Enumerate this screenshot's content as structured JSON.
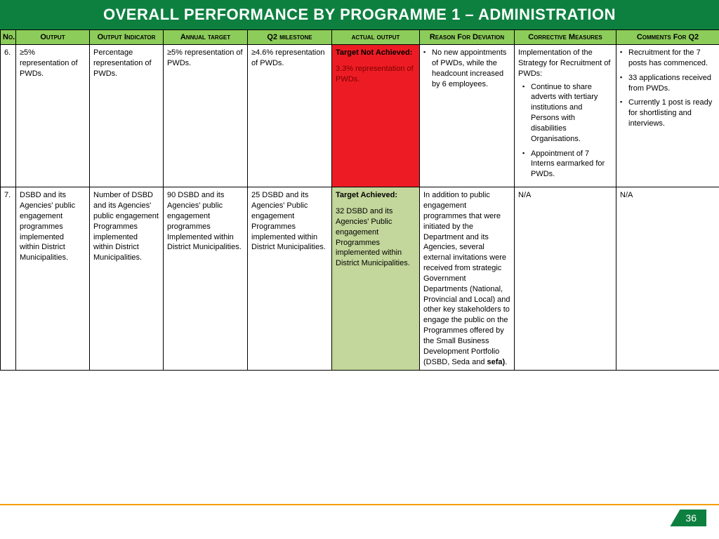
{
  "title": "OVERALL PERFORMANCE BY PROGRAMME 1 – ADMINISTRATION",
  "page_number": "36",
  "columns": {
    "no": "No.",
    "output": "Output",
    "indicator": "Output Indicator",
    "target": "Annual target",
    "milestone": "Q2 milestone",
    "actual": "actual output",
    "reason": "Reason For Deviation",
    "corrective": "Corrective Measures",
    "comments": "Comments For Q2"
  },
  "rows": [
    {
      "no": "6.",
      "output": "≥5% representation of PWDs.",
      "indicator": "Percentage representation of PWDs.",
      "target": "≥5% representation of PWDs.",
      "milestone": "≥4.6% representation of PWDs.",
      "actual_status": "Target Not Achieved:",
      "actual_detail": "3.3% representation of PWDs.",
      "actual_class": "red-cell",
      "reason_items": [
        "No new appointments of PWDs, while the headcount increased by 6 employees."
      ],
      "corrective_lead": "Implementation of the Strategy for Recruitment of PWDs:",
      "corrective_items": [
        "Continue to share adverts with tertiary institutions and Persons with disabilities Organisations.",
        "Appointment of 7 Interns earmarked for PWDs."
      ],
      "comments_items": [
        "Recruitment for the 7 posts has commenced.",
        "33 applications received from PWDs.",
        "Currently 1 post is ready for shortlisting and interviews."
      ]
    },
    {
      "no": "7.",
      "output": "DSBD and its Agencies' public engagement programmes implemented within District Municipalities.",
      "indicator": "Number of DSBD and its Agencies' public engagement Programmes implemented within District Municipalities.",
      "target": "90 DSBD and its Agencies' public engagement programmes Implemented within District Municipalities.",
      "milestone": "25 DSBD and its Agencies' Public engagement Programmes implemented within District Municipalities.",
      "actual_status": "Target Achieved:",
      "actual_detail": "32 DSBD and its Agencies' Public engagement Programmes implemented within District Municipalities.",
      "actual_class": "green-cell",
      "reason_text_pre": "In addition to public engagement programmes that were initiated by the Department and its Agencies, several external invitations were received from strategic Government Departments (National, Provincial and Local) and other key stakeholders to engage the public on the Programmes offered by the Small Business Development Portfolio (DSBD, Seda and ",
      "reason_text_bold": "sefa)",
      "reason_text_post": ".",
      "corrective_text": "N/A",
      "comments_text": "N/A"
    }
  ],
  "colors": {
    "title_bg": "#0d8040",
    "header_bg": "#8ccc5a",
    "not_achieved_bg": "#ed1c24",
    "achieved_bg": "#c3d69b",
    "footer_line": "#f59e0b"
  }
}
